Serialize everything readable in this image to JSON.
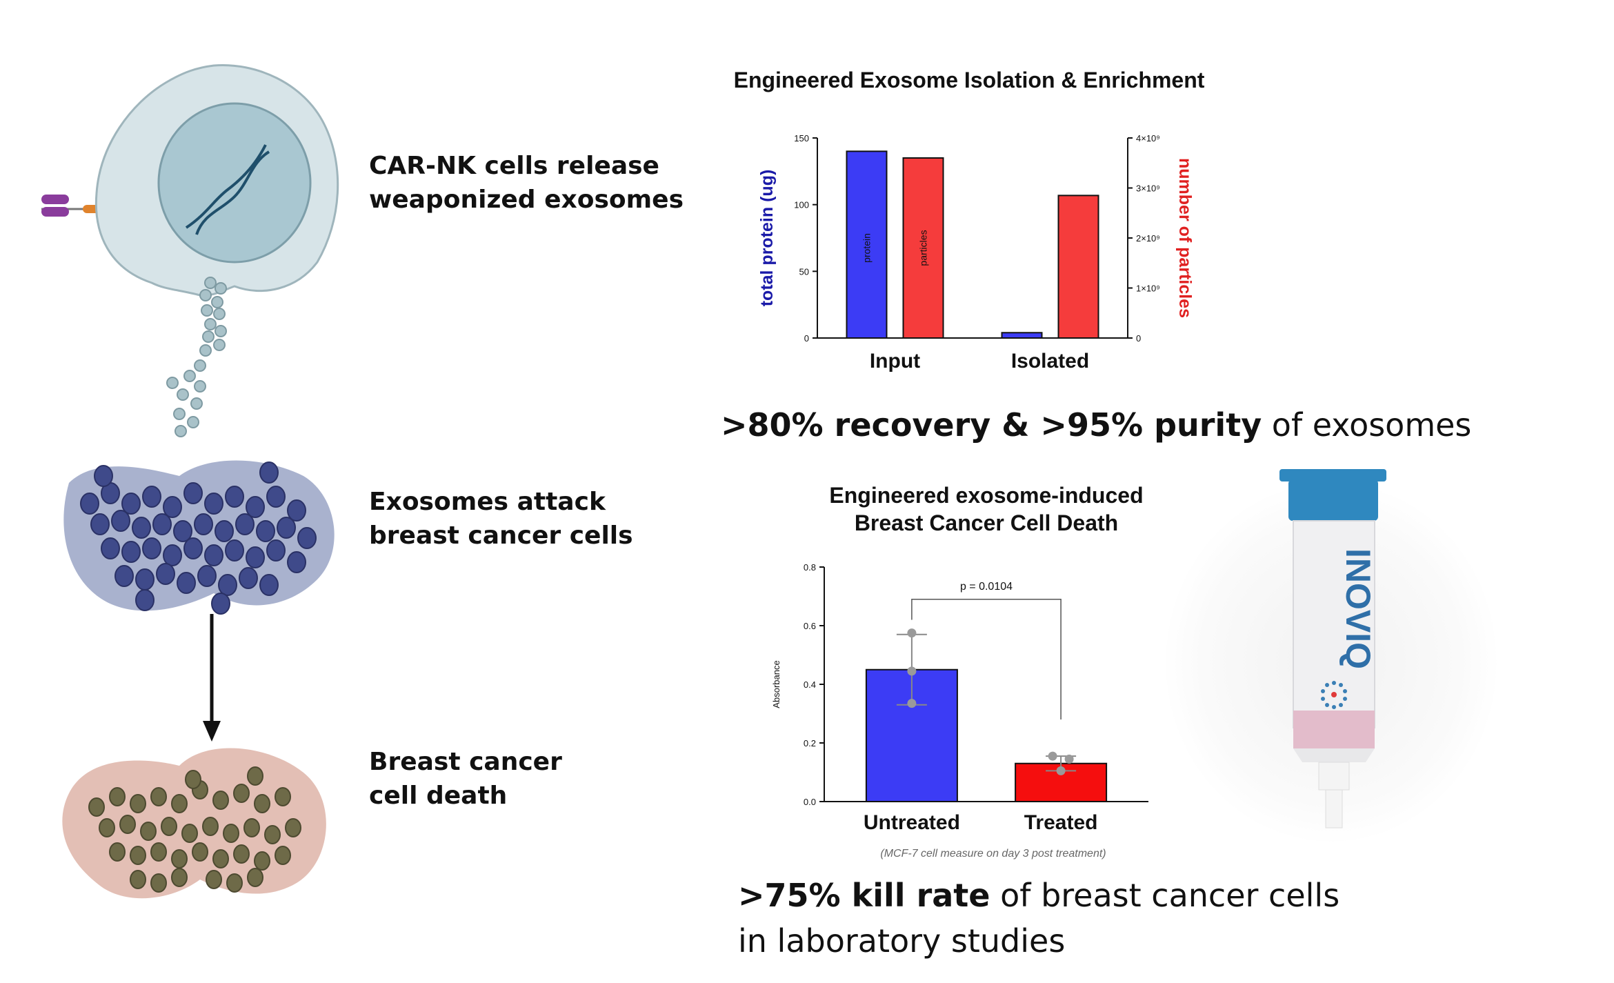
{
  "left_panel": {
    "steps": [
      {
        "label": "CAR-NK cells release\nweaponized exosomes"
      },
      {
        "label": "Exosomes attack\nbreast cancer cells"
      },
      {
        "label": "Breast cancer\ncell death"
      }
    ],
    "colors": {
      "nk_cell": "#c9dbe0",
      "nucleus": "#8fb6c3",
      "cancer_cells": "#3f4a8a",
      "dead_cells": "#b48a78"
    }
  },
  "product": {
    "brand": "INOVIQ",
    "colors": {
      "cap": "#2f88bf",
      "band": "#e3bccb",
      "tube": "#f2f2f2"
    }
  },
  "stats": {
    "recovery": {
      "bold": ">80% recovery & >95% purity",
      "rest": " of exosomes"
    },
    "kill": {
      "bold": ">75% kill rate",
      "rest": " of breast cancer cells",
      "line2": "in laboratory studies"
    }
  },
  "chart_data": [
    {
      "type": "bar",
      "title": "Engineered Exosome Isolation & Enrichment",
      "categories": [
        "Input",
        "Isolated"
      ],
      "series": [
        {
          "name": "protein",
          "axis": "left",
          "color": "#3c3cf5",
          "values": [
            140,
            4
          ]
        },
        {
          "name": "particles",
          "axis": "right",
          "color": "#f53c3c",
          "values": [
            3600000000.0,
            2850000000.0
          ]
        }
      ],
      "ylabel": "total protein (ug)",
      "ylabel_color": "#1a1aa8",
      "ylim": [
        0,
        150
      ],
      "yticks": [
        "0",
        "50",
        "100",
        "150"
      ],
      "y2label": "number of particles",
      "y2label_color": "#e02020",
      "y2lim": [
        0,
        4000000000.0
      ],
      "y2ticks": [
        "0",
        "1×10⁹",
        "2×10⁹",
        "3×10⁹",
        "4×10⁹"
      ]
    },
    {
      "type": "bar",
      "title": "Engineered exosome-induced\nBreast Cancer Cell Death",
      "categories": [
        "Untreated",
        "Treated"
      ],
      "values": [
        0.45,
        0.13
      ],
      "errors": [
        [
          0.33,
          0.57
        ],
        [
          0.105,
          0.155
        ]
      ],
      "points": [
        [
          0.575,
          0.445,
          0.335
        ],
        [
          0.155,
          0.105,
          0.145
        ]
      ],
      "colors": [
        "#3c3cf5",
        "#f50e0e"
      ],
      "ylabel": "Absorbance",
      "ylim": [
        0,
        0.8
      ],
      "yticks": [
        "0.0",
        "0.2",
        "0.4",
        "0.6",
        "0.8"
      ],
      "annotation": "p = 0.0104",
      "footnote": "(MCF-7 cell measure on day 3 post treatment)"
    }
  ]
}
